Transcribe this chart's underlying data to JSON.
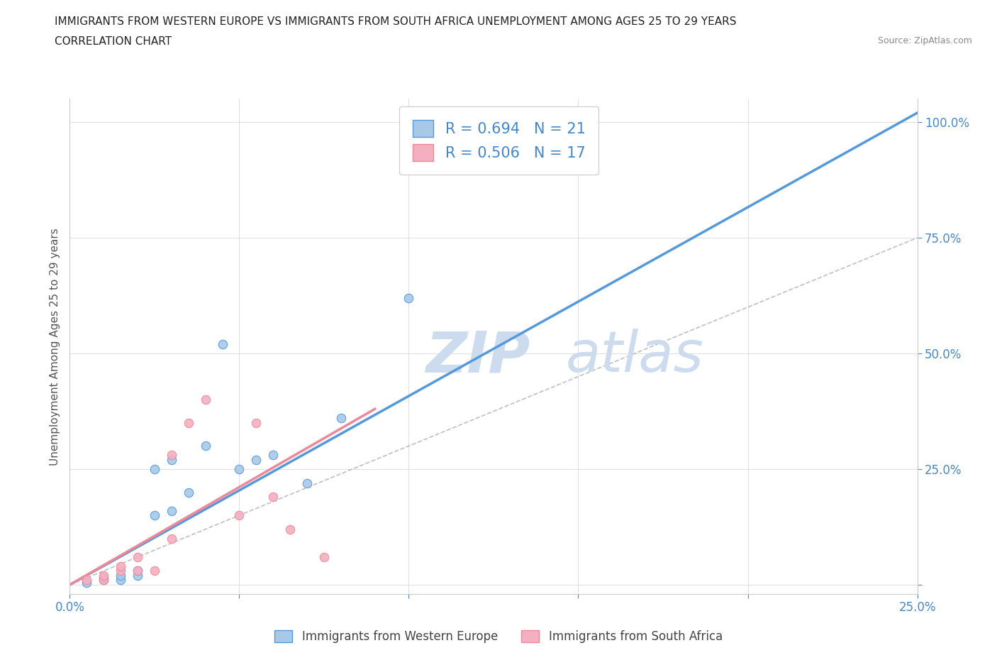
{
  "title_line1": "IMMIGRANTS FROM WESTERN EUROPE VS IMMIGRANTS FROM SOUTH AFRICA UNEMPLOYMENT AMONG AGES 25 TO 29 YEARS",
  "title_line2": "CORRELATION CHART",
  "source_text": "Source: ZipAtlas.com",
  "ylabel": "Unemployment Among Ages 25 to 29 years",
  "legend_label1": "Immigrants from Western Europe",
  "legend_label2": "Immigrants from South Africa",
  "R1": 0.694,
  "N1": 21,
  "R2": 0.506,
  "N2": 17,
  "color_blue": "#a8c8e8",
  "color_pink": "#f4afc0",
  "color_blue_line": "#5599dd",
  "color_pink_line": "#ee8899",
  "color_text_blue": "#4488cc",
  "watermark_color": "#ccdcee",
  "background_color": "#ffffff",
  "grid_color": "#e0e0e0",
  "x_range": [
    0,
    0.25
  ],
  "y_range": [
    -0.02,
    1.05
  ],
  "x_ticks": [
    0.0,
    0.05,
    0.1,
    0.15,
    0.2,
    0.25
  ],
  "y_ticks": [
    0.0,
    0.25,
    0.5,
    0.75,
    1.0
  ],
  "x_tick_show": [
    0.0,
    0.25
  ],
  "blue_scatter_x": [
    0.005,
    0.01,
    0.01,
    0.015,
    0.015,
    0.02,
    0.02,
    0.025,
    0.025,
    0.03,
    0.03,
    0.035,
    0.04,
    0.045,
    0.05,
    0.055,
    0.06,
    0.07,
    0.08,
    0.1,
    0.115
  ],
  "blue_scatter_y": [
    0.005,
    0.01,
    0.015,
    0.01,
    0.02,
    0.02,
    0.03,
    0.15,
    0.25,
    0.16,
    0.27,
    0.2,
    0.3,
    0.52,
    0.25,
    0.27,
    0.28,
    0.22,
    0.36,
    0.62,
    1.0
  ],
  "pink_scatter_x": [
    0.005,
    0.01,
    0.01,
    0.015,
    0.015,
    0.02,
    0.02,
    0.025,
    0.03,
    0.03,
    0.035,
    0.04,
    0.05,
    0.055,
    0.06,
    0.065,
    0.075
  ],
  "pink_scatter_y": [
    0.01,
    0.01,
    0.02,
    0.03,
    0.04,
    0.03,
    0.06,
    0.03,
    0.1,
    0.28,
    0.35,
    0.4,
    0.15,
    0.35,
    0.19,
    0.12,
    0.06
  ],
  "blue_trend_x": [
    0.0,
    0.25
  ],
  "blue_trend_y": [
    0.0,
    1.02
  ],
  "pink_trend_x": [
    0.0,
    0.09
  ],
  "pink_trend_y": [
    0.0,
    0.38
  ],
  "dashed_line_x": [
    0.0,
    0.25
  ],
  "dashed_line_y": [
    0.0,
    0.75
  ]
}
